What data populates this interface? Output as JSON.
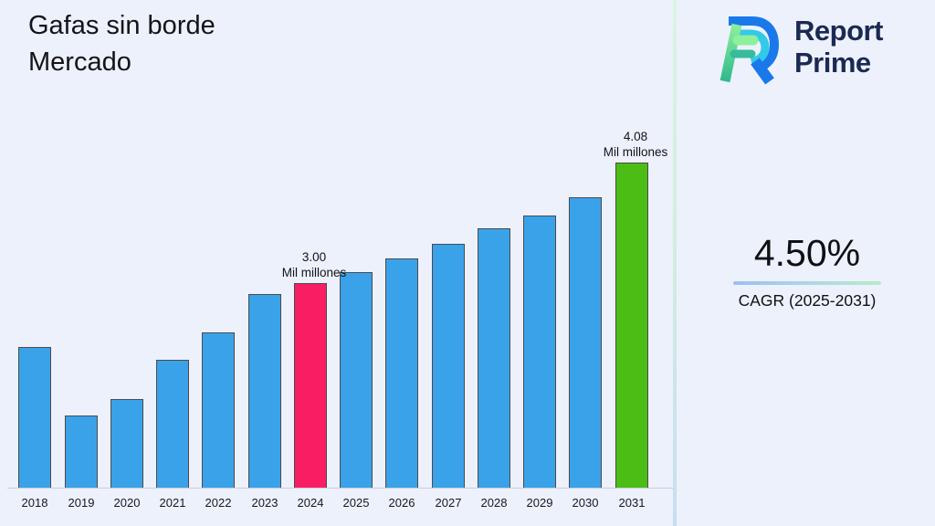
{
  "title": {
    "line1": "Gafas sin borde",
    "line2": "Mercado"
  },
  "brand": {
    "name_line1": "Report",
    "name_line2": "Prime"
  },
  "cagr": {
    "value": "4.50%",
    "label": "CAGR (2025-2031)"
  },
  "chart_data": {
    "type": "bar",
    "title": "Gafas sin borde Mercado",
    "unit": "Mil millones",
    "categories": [
      "2018",
      "2019",
      "2020",
      "2021",
      "2022",
      "2023",
      "2024",
      "2025",
      "2026",
      "2027",
      "2028",
      "2029",
      "2030",
      "2031"
    ],
    "values": [
      2.43,
      1.81,
      1.96,
      2.31,
      2.56,
      2.9,
      3.0,
      3.1,
      3.22,
      3.35,
      3.49,
      3.61,
      3.77,
      4.08
    ],
    "annotations": [
      {
        "category": "2024",
        "value": 3.0,
        "label_line1": "3.00",
        "label_line2": "Mil millones"
      },
      {
        "category": "2031",
        "value": 4.08,
        "label_line1": "4.08",
        "label_line2": "Mil millones"
      }
    ],
    "colors": {
      "default": "#3aa2e9",
      "2024": "#f91e63",
      "2031": "#4cbd15",
      "edge": "#4b4b4b"
    },
    "axis": {
      "x_label": "",
      "y_label": "",
      "y_baseline_value": 1.155,
      "ylim": [
        1.155,
        4.5
      ],
      "grid": false,
      "legend": false
    }
  }
}
